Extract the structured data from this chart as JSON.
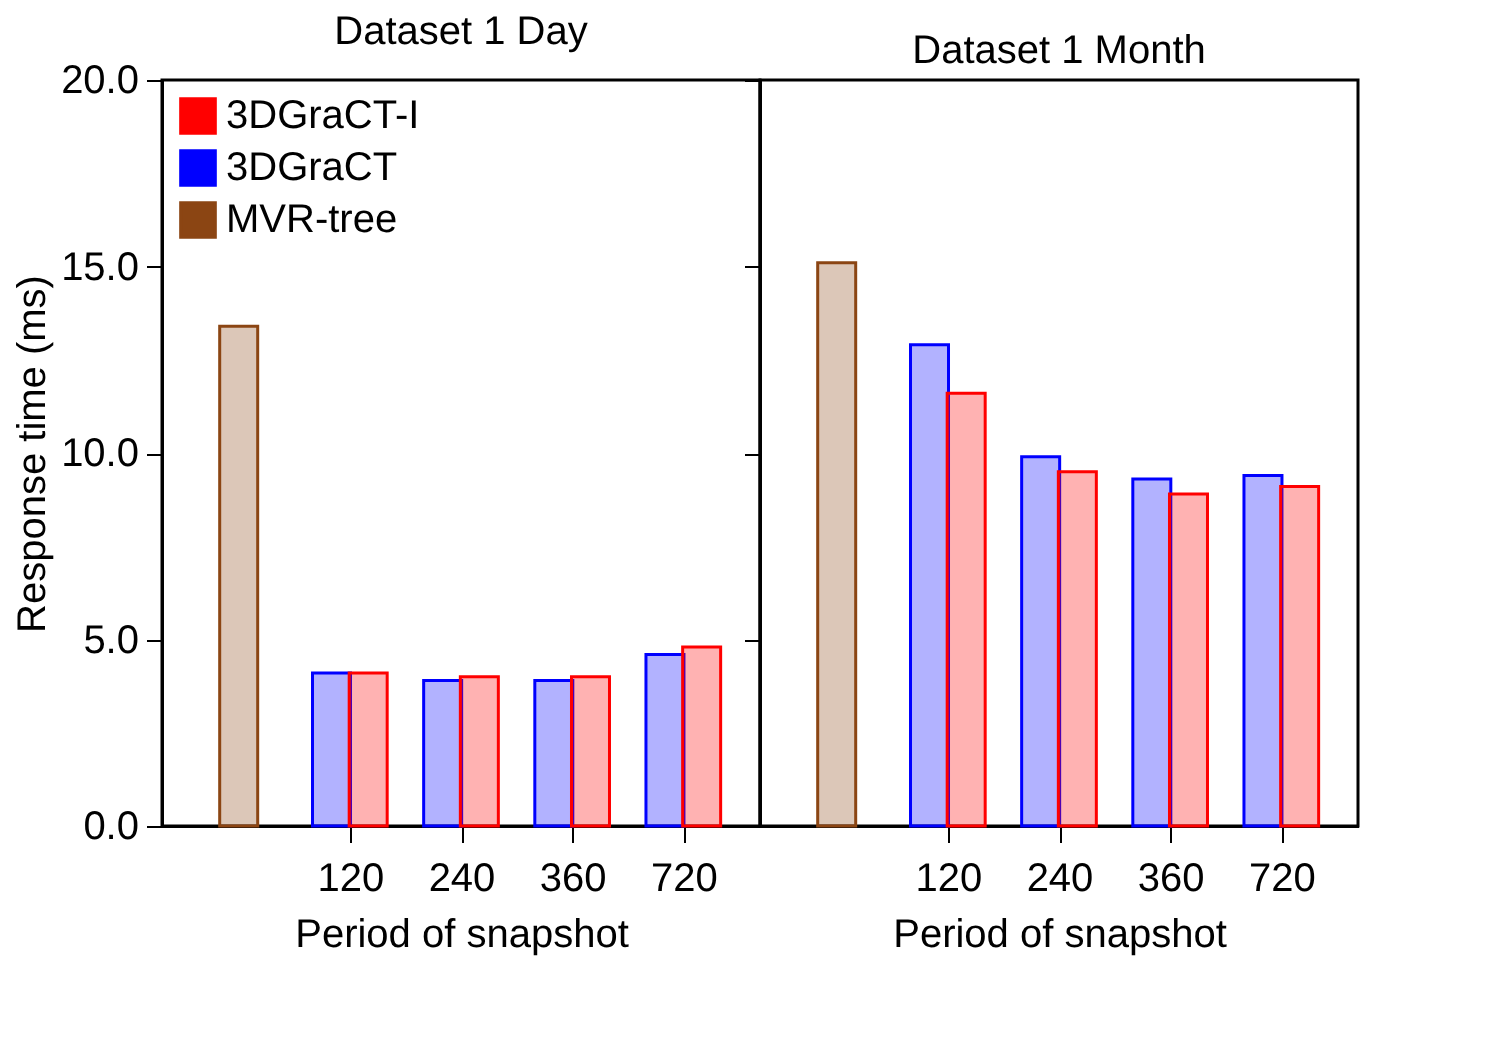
{
  "chart_data": [
    {
      "type": "bar",
      "title": "Dataset 1 Day",
      "xlabel": "Period of snapshot",
      "ylabel": "Response time (ms)",
      "categories": [
        null,
        "120",
        "240",
        "360",
        "720"
      ],
      "series": [
        {
          "name": "MVR-tree",
          "color": "#8b4513",
          "values": [
            13.4,
            null,
            null,
            null,
            null
          ]
        },
        {
          "name": "3DGraCT",
          "color": "#0000ff",
          "values": [
            null,
            4.1,
            3.9,
            3.9,
            4.6
          ]
        },
        {
          "name": "3DGraCT-I",
          "color": "#ff0000",
          "values": [
            null,
            4.1,
            4.0,
            4.0,
            4.8
          ]
        }
      ],
      "ylim": [
        0,
        20
      ],
      "yticks": [
        {
          "value": 0,
          "label": "0.0"
        },
        {
          "value": 5,
          "label": "5.0"
        },
        {
          "value": 10,
          "label": "10.0"
        },
        {
          "value": 15,
          "label": "15.0"
        },
        {
          "value": 20,
          "label": "20.0"
        }
      ],
      "legend": "top left"
    },
    {
      "type": "bar",
      "title": "Dataset 1 Month",
      "xlabel": "Period of snapshot",
      "categories": [
        null,
        "120",
        "240",
        "360",
        "720"
      ],
      "series": [
        {
          "color": "#8b4513",
          "values": [
            15.1,
            null,
            null,
            null,
            null
          ]
        },
        {
          "color": "#0000ff",
          "values": [
            null,
            12.9,
            9.9,
            9.3,
            9.4
          ]
        },
        {
          "color": "#ff0000",
          "values": [
            null,
            11.6,
            9.5,
            8.9,
            9.1
          ]
        }
      ],
      "ylim": [
        0,
        20
      ],
      "yticks": [
        {
          "value": 0,
          "label": null
        },
        {
          "value": 5,
          "label": null
        },
        {
          "value": 10,
          "label": null
        },
        {
          "value": 15,
          "label": null
        },
        {
          "value": 20,
          "label": null
        }
      ],
      "tick_labels": "x"
    }
  ]
}
